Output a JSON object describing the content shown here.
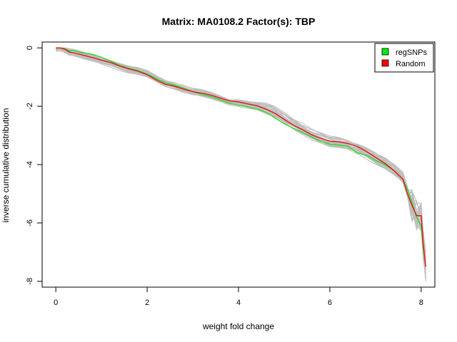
{
  "chart_data": {
    "type": "line",
    "title": "Matrix: MA0108.2 Factor(s): TBP",
    "xlabel": "weight fold change",
    "ylabel": "inverse cumulative distribution",
    "xlim": [
      -0.3,
      8.3
    ],
    "ylim": [
      -8.2,
      0.2
    ],
    "xticks": [
      0,
      2,
      4,
      6,
      8
    ],
    "yticks": [
      0,
      -2,
      -4,
      -6,
      -8
    ],
    "grid": false,
    "legend": {
      "position": "top-right",
      "entries": [
        {
          "label": "regSNPs",
          "color": "#00ee00"
        },
        {
          "label": "Random",
          "color": "#ff0000"
        }
      ]
    },
    "colors": {
      "regSNPs": "#22dd22",
      "Random": "#ee1111",
      "background_runs": "#bebebe"
    },
    "series": [
      {
        "name": "regSNPs",
        "x": [
          0,
          0.1,
          0.2,
          0.3,
          0.4,
          0.6,
          0.8,
          1.0,
          1.2,
          1.4,
          1.6,
          1.8,
          2.0,
          2.2,
          2.4,
          2.6,
          2.8,
          3.0,
          3.2,
          3.4,
          3.6,
          3.8,
          4.0,
          4.2,
          4.4,
          4.6,
          4.8,
          5.0,
          5.2,
          5.4,
          5.6,
          5.8,
          6.0,
          6.2,
          6.4,
          6.6,
          6.8,
          7.0,
          7.2,
          7.4,
          7.6,
          7.7,
          7.8,
          7.9,
          8.0,
          8.05,
          8.1
        ],
        "y": [
          0,
          0,
          -0.03,
          -0.1,
          -0.1,
          -0.17,
          -0.22,
          -0.32,
          -0.45,
          -0.6,
          -0.7,
          -0.78,
          -0.9,
          -1.05,
          -1.2,
          -1.28,
          -1.38,
          -1.5,
          -1.6,
          -1.67,
          -1.78,
          -1.9,
          -1.97,
          -2.02,
          -2.1,
          -2.2,
          -2.4,
          -2.6,
          -2.75,
          -2.9,
          -3.05,
          -3.2,
          -3.3,
          -3.33,
          -3.38,
          -3.6,
          -3.68,
          -3.85,
          -4.0,
          -4.2,
          -4.5,
          -4.85,
          -5.3,
          -5.8,
          -6.1,
          -6.9,
          -7.5
        ]
      },
      {
        "name": "Random",
        "x": [
          0,
          0.1,
          0.2,
          0.3,
          0.4,
          0.6,
          0.8,
          1.0,
          1.2,
          1.4,
          1.6,
          1.8,
          2.0,
          2.2,
          2.4,
          2.6,
          2.8,
          3.0,
          3.2,
          3.4,
          3.6,
          3.8,
          4.0,
          4.2,
          4.4,
          4.6,
          4.8,
          5.0,
          5.2,
          5.4,
          5.6,
          5.8,
          6.0,
          6.2,
          6.4,
          6.6,
          6.8,
          7.0,
          7.2,
          7.4,
          7.6,
          7.7,
          7.8,
          7.9,
          8.0,
          8.05,
          8.1
        ],
        "y": [
          0,
          0,
          -0.05,
          -0.15,
          -0.17,
          -0.25,
          -0.33,
          -0.42,
          -0.5,
          -0.62,
          -0.72,
          -0.8,
          -0.92,
          -1.1,
          -1.25,
          -1.32,
          -1.42,
          -1.5,
          -1.55,
          -1.62,
          -1.72,
          -1.82,
          -1.85,
          -1.92,
          -1.98,
          -2.1,
          -2.25,
          -2.45,
          -2.65,
          -2.8,
          -2.98,
          -3.1,
          -3.2,
          -3.22,
          -3.28,
          -3.38,
          -3.55,
          -3.75,
          -3.95,
          -4.2,
          -4.5,
          -5.0,
          -5.4,
          -5.75,
          -5.75,
          -6.8,
          -7.5
        ]
      }
    ],
    "background_runs": 30
  }
}
